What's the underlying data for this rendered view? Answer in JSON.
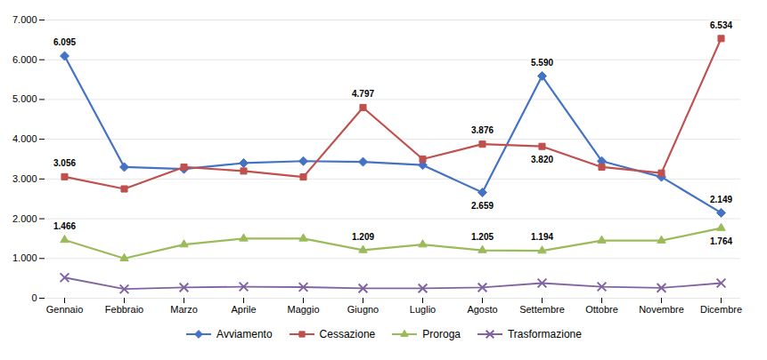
{
  "chart_data": {
    "type": "line",
    "categories": [
      "Gennaio",
      "Febbraio",
      "Marzo",
      "Aprile",
      "Maggio",
      "Giugno",
      "Luglio",
      "Agosto",
      "Settembre",
      "Ottobre",
      "Novembre",
      "Dicembre"
    ],
    "series": [
      {
        "name": "Avviamento",
        "color": "#4472C4",
        "marker": "diamond",
        "values": [
          6095,
          3300,
          3250,
          3400,
          3450,
          3431,
          3350,
          2659,
          5590,
          3450,
          3050,
          2149
        ],
        "value_labels": [
          "6.095",
          null,
          null,
          null,
          null,
          null,
          null,
          "2.659",
          "5.590",
          null,
          null,
          "2.149"
        ]
      },
      {
        "name": "Cessazione",
        "color": "#C0504D",
        "marker": "square",
        "values": [
          3056,
          2750,
          3300,
          3200,
          3050,
          4797,
          3500,
          3876,
          3820,
          3300,
          3150,
          6534
        ],
        "value_labels": [
          "3.056",
          null,
          null,
          null,
          null,
          "4.797",
          null,
          "3.876",
          "3.820",
          null,
          null,
          "6.534"
        ]
      },
      {
        "name": "Proroga",
        "color": "#9BBB59",
        "marker": "triangle",
        "values": [
          1466,
          1000,
          1350,
          1500,
          1500,
          1209,
          1350,
          1205,
          1194,
          1450,
          1450,
          1764
        ],
        "value_labels": [
          "1.466",
          null,
          null,
          null,
          null,
          "1.209",
          null,
          "1.205",
          "1.194",
          null,
          null,
          "1.764"
        ]
      },
      {
        "name": "Trasformazione",
        "color": "#8064A2",
        "marker": "x",
        "values": [
          520,
          230,
          270,
          290,
          280,
          250,
          250,
          270,
          380,
          290,
          260,
          380
        ]
      }
    ],
    "ylim": [
      0,
      7000
    ],
    "yticks": [
      0,
      {
        "value": 1000,
        "label": "1.000"
      },
      {
        "value": 2000,
        "label": "2.000"
      },
      {
        "value": 3000,
        "label": "3.000"
      },
      {
        "value": 4000,
        "label": "4.000"
      },
      {
        "value": 5000,
        "label": "5.000"
      },
      {
        "value": 6000,
        "label": "6.000"
      },
      {
        "value": 7000,
        "label": "7.000"
      }
    ],
    "grid": true,
    "legend": "bottom"
  }
}
